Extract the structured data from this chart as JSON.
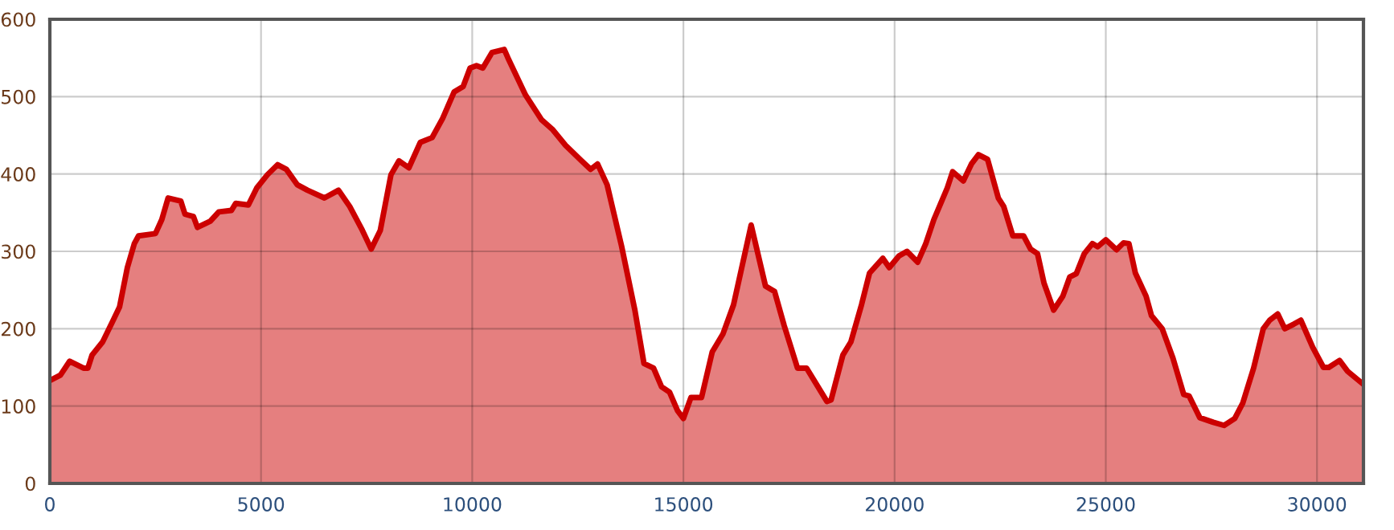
{
  "chart_data": {
    "type": "area",
    "x": [
      0,
      250,
      470,
      797,
      900,
      1000,
      1250,
      1500,
      1650,
      1835,
      2000,
      2100,
      2500,
      2650,
      2800,
      3100,
      3200,
      3400,
      3494,
      3800,
      4000,
      4300,
      4400,
      4700,
      4900,
      5150,
      5392,
      5600,
      5861,
      6100,
      6500,
      6835,
      7100,
      7400,
      7608,
      7823,
      8076,
      8266,
      8500,
      8772,
      9050,
      9300,
      9570,
      9785,
      9949,
      10101,
      10250,
      10467,
      10758,
      10846,
      11263,
      11641,
      11894,
      12210,
      12588,
      12803,
      12967,
      13194,
      13535,
      13851,
      14066,
      14293,
      14482,
      14672,
      14861,
      15000,
      15177,
      15429,
      15682,
      15934,
      16187,
      16604,
      16944,
      17159,
      17386,
      17702,
      17917,
      18397,
      18497,
      18775,
      18965,
      19217,
      19407,
      19722,
      19874,
      20102,
      20293,
      20547,
      20738,
      20929,
      21247,
      21374,
      21628,
      21819,
      21985,
      22201,
      22455,
      22583,
      22799,
      23053,
      23219,
      23384,
      23537,
      23766,
      23982,
      24148,
      24300,
      24491,
      24682,
      24809,
      25000,
      25254,
      25420,
      25547,
      25700,
      25954,
      26081,
      26336,
      26590,
      26845,
      26972,
      27226,
      27545,
      27799,
      28053,
      28244,
      28499,
      28728,
      28880,
      29071,
      29237,
      29453,
      29618,
      29898,
      30153,
      30280,
      30534,
      30725,
      31100
    ],
    "series": [
      {
        "color": "#cc0000",
        "values": [
          133,
          140,
          158,
          149,
          149,
          166,
          183,
          211,
          228,
          279,
          310,
          320,
          323,
          341,
          369,
          365,
          348,
          345,
          331,
          339,
          351,
          353,
          362,
          360,
          382,
          399,
          412,
          406,
          386,
          379,
          369,
          379,
          358,
          327,
          303,
          327,
          399,
          417,
          408,
          441,
          447,
          472,
          506,
          513,
          537,
          540,
          537,
          557,
          561,
          550,
          502,
          470,
          458,
          437,
          417,
          406,
          413,
          386,
          307,
          224,
          155,
          149,
          125,
          118,
          94,
          84,
          111,
          111,
          170,
          193,
          231,
          334,
          255,
          248,
          204,
          149,
          149,
          106,
          108,
          166,
          183,
          231,
          272,
          291,
          279,
          294,
          300,
          286,
          310,
          341,
          382,
          403,
          391,
          413,
          425,
          419,
          369,
          358,
          320,
          320,
          303,
          297,
          259,
          224,
          242,
          267,
          271,
          297,
          310,
          306,
          315,
          302,
          311,
          310,
          272,
          242,
          217,
          200,
          162,
          115,
          113,
          85,
          79,
          75,
          84,
          104,
          149,
          200,
          211,
          219,
          200,
          206,
          211,
          176,
          150,
          150,
          159,
          145,
          128
        ]
      }
    ],
    "xlim": [
      0,
      31100
    ],
    "ylim": [
      0,
      600
    ],
    "xticks": [
      0,
      5000,
      10000,
      15000,
      20000,
      25000,
      30000
    ],
    "yticks": [
      0,
      100,
      200,
      300,
      400,
      500,
      600
    ],
    "grid": true
  }
}
